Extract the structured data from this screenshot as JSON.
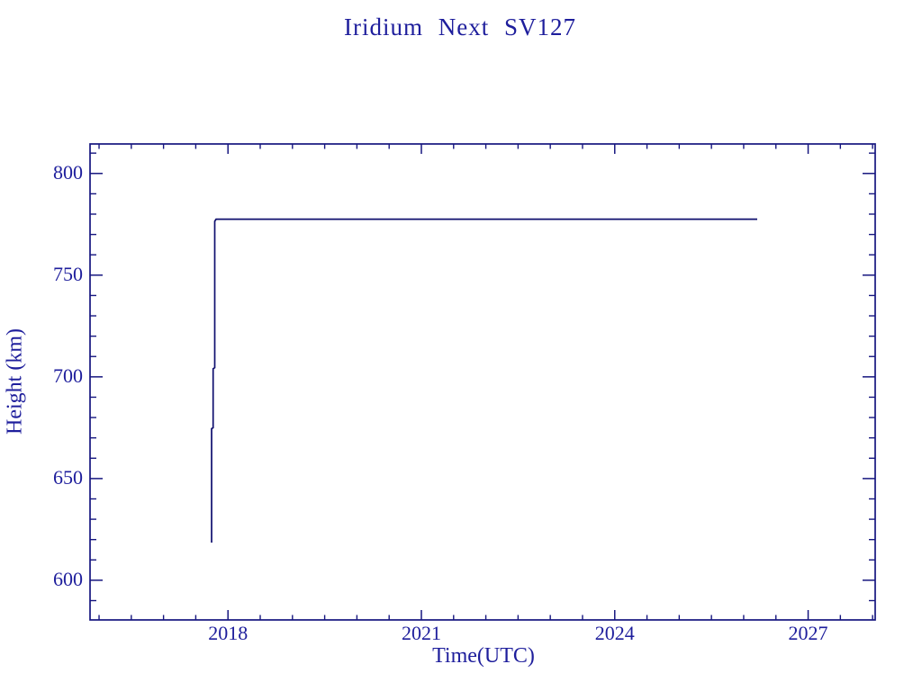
{
  "figure": {
    "background": "#ffffff"
  },
  "chart_data": {
    "type": "line",
    "title": "Iridium Next SV127",
    "xlabel": "Time(UTC)",
    "ylabel": "Height (km)",
    "xlim": [
      2015.86,
      2028.04
    ],
    "ylim": [
      580.5,
      814.5
    ],
    "x_major_ticks": [
      2018,
      2021,
      2024,
      2027
    ],
    "x_minor_step": 0.5,
    "y_major_ticks": [
      600,
      650,
      700,
      750,
      800
    ],
    "y_minor_step": 10,
    "grid": false,
    "legend": null,
    "series": [
      {
        "name": "orbit-height",
        "points": [
          [
            2017.745,
            618.5
          ],
          [
            2017.745,
            674.5
          ],
          [
            2017.77,
            675.0
          ],
          [
            2017.77,
            704.0
          ],
          [
            2017.795,
            704.5
          ],
          [
            2017.795,
            776.5
          ],
          [
            2017.815,
            777.5
          ],
          [
            2026.21,
            777.5
          ]
        ]
      }
    ],
    "colors": {
      "text": "#1e1e9c",
      "frame": "#16167f",
      "line": "#0f0f6e"
    }
  }
}
